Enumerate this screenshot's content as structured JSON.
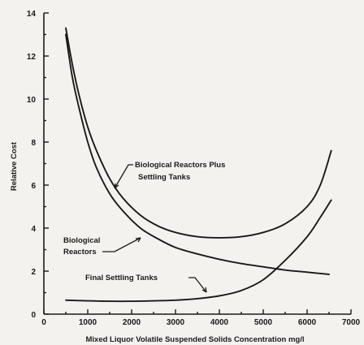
{
  "chart_data": {
    "type": "line",
    "title": "",
    "xlabel": "Mixed Liquor Volatile Suspended Solids Concentration mg/l",
    "ylabel": "Relative Cost",
    "xlim": [
      0,
      7000
    ],
    "ylim": [
      0,
      14
    ],
    "x_ticks": [
      "0",
      "1000",
      "2000",
      "3000",
      "4000",
      "5000",
      "6000",
      "7000"
    ],
    "y_ticks": [
      "0",
      "2",
      "4",
      "6",
      "8",
      "10",
      "12",
      "14"
    ],
    "grid": false,
    "series": [
      {
        "name": "Biological Reactors Plus Settling Tanks",
        "x": [
          500,
          650,
          800,
          1000,
          1200,
          1500,
          1800,
          2200,
          2600,
          3000,
          3500,
          4000,
          4500,
          5000,
          5500,
          6000,
          6300,
          6550
        ],
        "y": [
          13.3,
          11.6,
          10.2,
          8.7,
          7.6,
          6.3,
          5.4,
          4.6,
          4.1,
          3.8,
          3.6,
          3.55,
          3.6,
          3.8,
          4.2,
          5.0,
          6.0,
          7.6
        ]
      },
      {
        "name": "Biological Reactors",
        "x": [
          500,
          650,
          800,
          1000,
          1200,
          1500,
          1800,
          2200,
          2600,
          3000,
          3500,
          4000,
          4500,
          5000,
          5500,
          6000,
          6500
        ],
        "y": [
          13.0,
          11.0,
          9.6,
          8.0,
          6.8,
          5.6,
          4.8,
          4.0,
          3.5,
          3.1,
          2.8,
          2.55,
          2.35,
          2.2,
          2.05,
          1.95,
          1.85
        ]
      },
      {
        "name": "Final Settling Tanks",
        "x": [
          500,
          1000,
          1500,
          2000,
          2500,
          3000,
          3500,
          4000,
          4500,
          5000,
          5500,
          6000,
          6300,
          6550
        ],
        "y": [
          0.65,
          0.62,
          0.6,
          0.6,
          0.62,
          0.65,
          0.72,
          0.85,
          1.1,
          1.6,
          2.5,
          3.6,
          4.5,
          5.3
        ]
      }
    ],
    "annotations": [
      {
        "lines": [
          "Biological Reactors Plus",
          "Settling Tanks"
        ]
      },
      {
        "lines": [
          "Biological",
          "Reactors"
        ]
      },
      {
        "lines": [
          "Final Settling Tanks"
        ]
      }
    ]
  }
}
